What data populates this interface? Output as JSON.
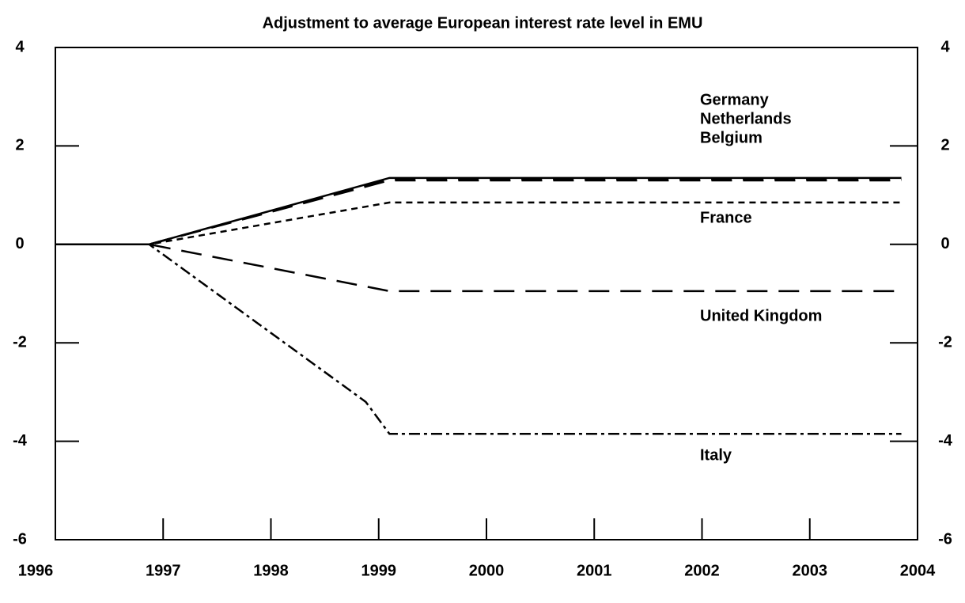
{
  "chart_data": {
    "type": "line",
    "title": "Adjustment to average European interest rate level in EMU",
    "xlim": [
      1996,
      2004
    ],
    "xticks": [
      1996,
      1997,
      1998,
      1999,
      2000,
      2001,
      2002,
      2003,
      2004
    ],
    "ylim": [
      -6,
      4
    ],
    "yticks": [
      4,
      2,
      0,
      -2,
      -4,
      -6
    ],
    "series": [
      {
        "name": "Germany",
        "color": "#000000",
        "dash": "solid",
        "x": [
          1996,
          1996.87,
          1999.1,
          2003.85
        ],
        "values": [
          0,
          0,
          1.35,
          1.35
        ]
      },
      {
        "name": "Netherlands",
        "color": "#000000",
        "dash": "longdash",
        "x": [
          1996,
          1996.87,
          1999.1,
          2003.85
        ],
        "values": [
          0,
          0,
          1.3,
          1.3
        ]
      },
      {
        "name": "Belgium",
        "color": "#000000",
        "dash": "longdash",
        "x": [
          1996,
          1996.87,
          1999.1,
          2003.85
        ],
        "values": [
          0,
          0,
          1.32,
          1.32
        ]
      },
      {
        "name": "France",
        "color": "#000000",
        "dash": "shortdash",
        "x": [
          1996,
          1996.87,
          1999.1,
          2003.85
        ],
        "values": [
          0,
          0,
          0.85,
          0.85
        ]
      },
      {
        "name": "United Kingdom",
        "color": "#000000",
        "dash": "longdash",
        "x": [
          1996,
          1996.87,
          1999.1,
          2003.85
        ],
        "values": [
          0,
          0,
          -0.95,
          -0.95
        ]
      },
      {
        "name": "Italy",
        "color": "#000000",
        "dash": "dashdot",
        "x": [
          1996,
          1996.87,
          1998.88,
          1999.1,
          2003.85
        ],
        "values": [
          0,
          0,
          -3.2,
          -3.85,
          -3.85
        ]
      }
    ]
  }
}
